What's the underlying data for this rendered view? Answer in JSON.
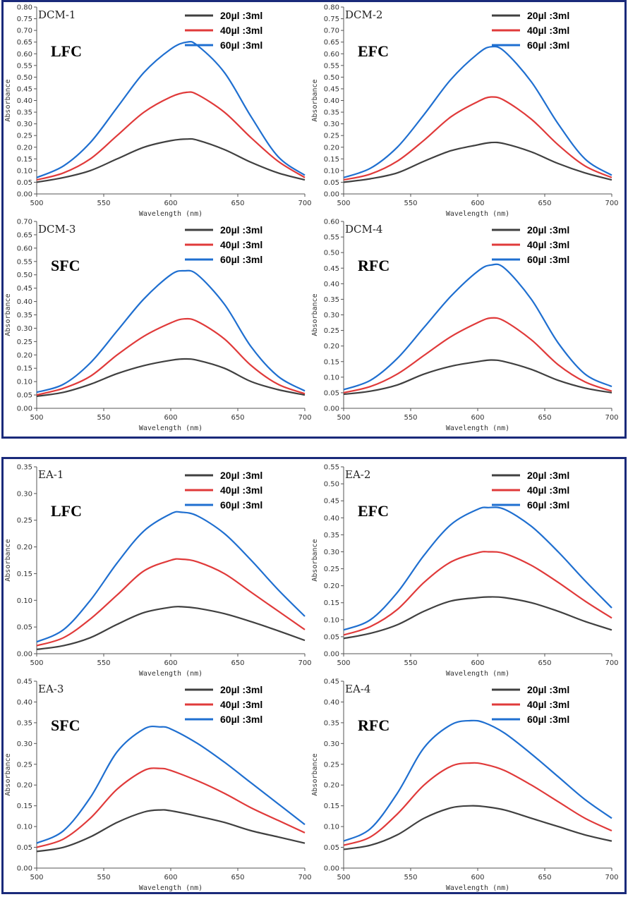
{
  "colors": {
    "series_20": "#404040",
    "series_40": "#e03a3a",
    "series_60": "#1f6fd0",
    "frame": "#1a2a7a"
  },
  "chart_data": [
    {
      "type": "line",
      "title": "DCM-1",
      "sample": "LFC",
      "xlabel": "Wavelength (nm)",
      "ylabel": "Absorbance",
      "xlim": [
        500,
        700
      ],
      "ylim": [
        0,
        0.8
      ],
      "ystep": 0.05,
      "xticks": [
        500,
        550,
        600,
        650,
        700
      ],
      "x": [
        500,
        520,
        540,
        560,
        580,
        600,
        612,
        620,
        640,
        660,
        680,
        700
      ],
      "series": [
        {
          "name": "20µl :3ml",
          "values": [
            0.05,
            0.07,
            0.1,
            0.15,
            0.2,
            0.228,
            0.235,
            0.23,
            0.19,
            0.135,
            0.09,
            0.06
          ]
        },
        {
          "name": "40µl :3ml",
          "values": [
            0.06,
            0.09,
            0.15,
            0.25,
            0.35,
            0.415,
            0.435,
            0.425,
            0.35,
            0.24,
            0.14,
            0.07
          ]
        },
        {
          "name": "60µl :3ml",
          "values": [
            0.07,
            0.12,
            0.22,
            0.37,
            0.52,
            0.62,
            0.65,
            0.635,
            0.52,
            0.33,
            0.16,
            0.08
          ]
        }
      ]
    },
    {
      "type": "line",
      "title": "DCM-2",
      "sample": "EFC",
      "xlabel": "Wavelength (nm)",
      "ylabel": "Absorbance",
      "xlim": [
        500,
        700
      ],
      "ylim": [
        0,
        0.8
      ],
      "ystep": 0.05,
      "xticks": [
        500,
        550,
        600,
        650,
        700
      ],
      "x": [
        500,
        520,
        540,
        560,
        580,
        600,
        610,
        620,
        640,
        660,
        680,
        700
      ],
      "series": [
        {
          "name": "20µl :3ml",
          "values": [
            0.05,
            0.065,
            0.09,
            0.14,
            0.185,
            0.21,
            0.22,
            0.215,
            0.18,
            0.13,
            0.09,
            0.06
          ]
        },
        {
          "name": "40µl :3ml",
          "values": [
            0.06,
            0.085,
            0.14,
            0.23,
            0.33,
            0.395,
            0.415,
            0.4,
            0.32,
            0.21,
            0.12,
            0.07
          ]
        },
        {
          "name": "60µl :3ml",
          "values": [
            0.07,
            0.11,
            0.2,
            0.34,
            0.49,
            0.6,
            0.63,
            0.61,
            0.48,
            0.3,
            0.15,
            0.08
          ]
        }
      ]
    },
    {
      "type": "line",
      "title": "DCM-3",
      "sample": "SFC",
      "xlabel": "Wavelength (nm)",
      "ylabel": "Absorbance",
      "xlim": [
        500,
        700
      ],
      "ylim": [
        0,
        0.7
      ],
      "ystep": 0.05,
      "xticks": [
        500,
        550,
        600,
        650,
        700
      ],
      "x": [
        500,
        520,
        540,
        560,
        580,
        600,
        610,
        620,
        640,
        660,
        680,
        700
      ],
      "series": [
        {
          "name": "20µl :3ml",
          "values": [
            0.045,
            0.06,
            0.09,
            0.13,
            0.16,
            0.18,
            0.185,
            0.18,
            0.15,
            0.1,
            0.07,
            0.05
          ]
        },
        {
          "name": "40µl :3ml",
          "values": [
            0.05,
            0.075,
            0.12,
            0.2,
            0.27,
            0.32,
            0.335,
            0.325,
            0.26,
            0.16,
            0.09,
            0.055
          ]
        },
        {
          "name": "60µl :3ml",
          "values": [
            0.06,
            0.09,
            0.17,
            0.29,
            0.41,
            0.5,
            0.515,
            0.5,
            0.39,
            0.23,
            0.12,
            0.065
          ]
        }
      ]
    },
    {
      "type": "line",
      "title": "DCM-4",
      "sample": "RFC",
      "xlabel": "Wavelength (nm)",
      "ylabel": "Absorbance",
      "xlim": [
        500,
        700
      ],
      "ylim": [
        0,
        0.6
      ],
      "ystep": 0.05,
      "xticks": [
        500,
        550,
        600,
        650,
        700
      ],
      "x": [
        500,
        520,
        540,
        560,
        580,
        600,
        610,
        620,
        640,
        660,
        680,
        700
      ],
      "series": [
        {
          "name": "20µl :3ml",
          "values": [
            0.045,
            0.055,
            0.075,
            0.11,
            0.135,
            0.15,
            0.155,
            0.15,
            0.125,
            0.09,
            0.065,
            0.05
          ]
        },
        {
          "name": "40µl :3ml",
          "values": [
            0.05,
            0.07,
            0.11,
            0.17,
            0.23,
            0.275,
            0.29,
            0.28,
            0.22,
            0.14,
            0.085,
            0.055
          ]
        },
        {
          "name": "60µl :3ml",
          "values": [
            0.06,
            0.09,
            0.16,
            0.26,
            0.36,
            0.44,
            0.46,
            0.45,
            0.35,
            0.21,
            0.11,
            0.07
          ]
        }
      ]
    },
    {
      "type": "line",
      "title": "EA-1",
      "sample": "LFC",
      "xlabel": "Wavelength (nm)",
      "ylabel": "Absorbance",
      "xlim": [
        500,
        700
      ],
      "ylim": [
        0,
        0.35
      ],
      "ystep": 0.05,
      "xticks": [
        500,
        550,
        600,
        650,
        700
      ],
      "x": [
        500,
        520,
        540,
        560,
        580,
        600,
        608,
        620,
        640,
        660,
        680,
        700
      ],
      "series": [
        {
          "name": "20µl :3ml",
          "values": [
            0.008,
            0.015,
            0.03,
            0.055,
            0.077,
            0.087,
            0.088,
            0.085,
            0.075,
            0.06,
            0.043,
            0.025
          ]
        },
        {
          "name": "40µl :3ml",
          "values": [
            0.015,
            0.03,
            0.065,
            0.11,
            0.155,
            0.175,
            0.177,
            0.172,
            0.15,
            0.115,
            0.08,
            0.045
          ]
        },
        {
          "name": "60µl :3ml",
          "values": [
            0.022,
            0.045,
            0.1,
            0.17,
            0.23,
            0.262,
            0.265,
            0.258,
            0.225,
            0.175,
            0.12,
            0.07
          ]
        }
      ]
    },
    {
      "type": "line",
      "title": "EA-2",
      "sample": "EFC",
      "xlabel": "Wavelength (nm)",
      "ylabel": "Absorbance",
      "xlim": [
        500,
        700
      ],
      "ylim": [
        0,
        0.55
      ],
      "ystep": 0.05,
      "xticks": [
        500,
        550,
        600,
        650,
        700
      ],
      "x": [
        500,
        520,
        540,
        560,
        580,
        600,
        608,
        620,
        640,
        660,
        680,
        700
      ],
      "series": [
        {
          "name": "20µl :3ml",
          "values": [
            0.045,
            0.06,
            0.085,
            0.125,
            0.155,
            0.165,
            0.167,
            0.165,
            0.15,
            0.125,
            0.095,
            0.07
          ]
        },
        {
          "name": "40µl :3ml",
          "values": [
            0.055,
            0.08,
            0.13,
            0.21,
            0.27,
            0.297,
            0.3,
            0.295,
            0.26,
            0.21,
            0.155,
            0.105
          ]
        },
        {
          "name": "60µl :3ml",
          "values": [
            0.07,
            0.1,
            0.18,
            0.29,
            0.38,
            0.425,
            0.43,
            0.425,
            0.375,
            0.3,
            0.215,
            0.135
          ]
        }
      ]
    },
    {
      "type": "line",
      "title": "EA-3",
      "sample": "SFC",
      "xlabel": "Wavelength (nm)",
      "ylabel": "Absorbance",
      "xlim": [
        500,
        700
      ],
      "ylim": [
        0,
        0.45
      ],
      "ystep": 0.05,
      "xticks": [
        500,
        550,
        600,
        650,
        700
      ],
      "x": [
        500,
        520,
        540,
        560,
        580,
        592,
        600,
        620,
        640,
        660,
        680,
        700
      ],
      "series": [
        {
          "name": "20µl :3ml",
          "values": [
            0.04,
            0.05,
            0.075,
            0.11,
            0.135,
            0.14,
            0.138,
            0.125,
            0.11,
            0.09,
            0.075,
            0.06
          ]
        },
        {
          "name": "40µl :3ml",
          "values": [
            0.05,
            0.07,
            0.12,
            0.19,
            0.235,
            0.24,
            0.235,
            0.21,
            0.18,
            0.145,
            0.115,
            0.085
          ]
        },
        {
          "name": "60µl :3ml",
          "values": [
            0.06,
            0.09,
            0.17,
            0.28,
            0.335,
            0.34,
            0.335,
            0.3,
            0.255,
            0.205,
            0.155,
            0.105
          ]
        }
      ]
    },
    {
      "type": "line",
      "title": "EA-4",
      "sample": "RFC",
      "xlabel": "Wavelength (nm)",
      "ylabel": "Absorbance",
      "xlim": [
        500,
        700
      ],
      "ylim": [
        0,
        0.45
      ],
      "ystep": 0.05,
      "xticks": [
        500,
        550,
        600,
        650,
        700
      ],
      "x": [
        500,
        520,
        540,
        560,
        580,
        595,
        605,
        620,
        640,
        660,
        680,
        700
      ],
      "series": [
        {
          "name": "20µl :3ml",
          "values": [
            0.045,
            0.055,
            0.08,
            0.12,
            0.145,
            0.15,
            0.148,
            0.14,
            0.12,
            0.1,
            0.08,
            0.065
          ]
        },
        {
          "name": "40µl :3ml",
          "values": [
            0.055,
            0.075,
            0.13,
            0.2,
            0.245,
            0.253,
            0.25,
            0.235,
            0.2,
            0.16,
            0.12,
            0.09
          ]
        },
        {
          "name": "60µl :3ml",
          "values": [
            0.065,
            0.095,
            0.18,
            0.29,
            0.345,
            0.355,
            0.35,
            0.325,
            0.275,
            0.22,
            0.165,
            0.12
          ]
        }
      ]
    }
  ]
}
